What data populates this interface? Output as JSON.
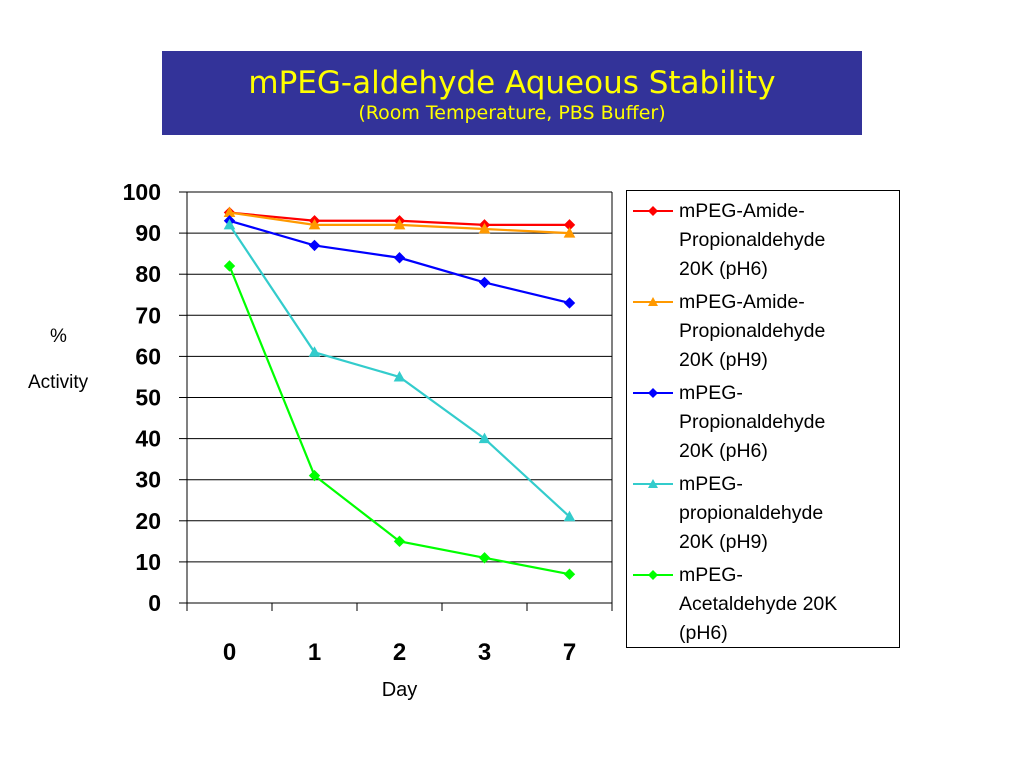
{
  "title": {
    "main": "mPEG-aldehyde Aqueous Stability",
    "sub": "(Room Temperature, PBS Buffer)"
  },
  "colors": {
    "title_bg": "#333399",
    "title_text": "#ffff00"
  },
  "chart_data": {
    "type": "line",
    "categories": [
      "0",
      "1",
      "2",
      "3",
      "7"
    ],
    "xlabel": "Day",
    "ylabel_line1": "%",
    "ylabel_line2": "Activity",
    "ylim": [
      0,
      100
    ],
    "yticks": [
      0,
      10,
      20,
      30,
      40,
      50,
      60,
      70,
      80,
      90,
      100
    ],
    "grid": true,
    "legend_position": "right",
    "series": [
      {
        "name_lines": [
          "mPEG-Amide-",
          "Propionaldehyde",
          "20K (pH6)"
        ],
        "values": [
          95,
          93,
          93,
          92,
          92
        ],
        "color": "#ff0000",
        "marker": "diamond"
      },
      {
        "name_lines": [
          "mPEG-Amide-",
          "Propionaldehyde",
          "20K (pH9)"
        ],
        "values": [
          95,
          92,
          92,
          91,
          90
        ],
        "color": "#ff9900",
        "marker": "triangle"
      },
      {
        "name_lines": [
          "mPEG-",
          "Propionaldehyde",
          "20K (pH6)"
        ],
        "values": [
          93,
          87,
          84,
          78,
          73
        ],
        "color": "#0000ff",
        "marker": "diamond"
      },
      {
        "name_lines": [
          "mPEG-",
          "propionaldehyde",
          "20K (pH9)"
        ],
        "values": [
          92,
          61,
          55,
          40,
          21
        ],
        "color": "#33cccc",
        "marker": "triangle"
      },
      {
        "name_lines": [
          "mPEG-",
          "Acetaldehyde 20K",
          "(pH6)"
        ],
        "values": [
          82,
          31,
          15,
          11,
          7
        ],
        "color": "#00ff00",
        "marker": "diamond"
      }
    ]
  }
}
